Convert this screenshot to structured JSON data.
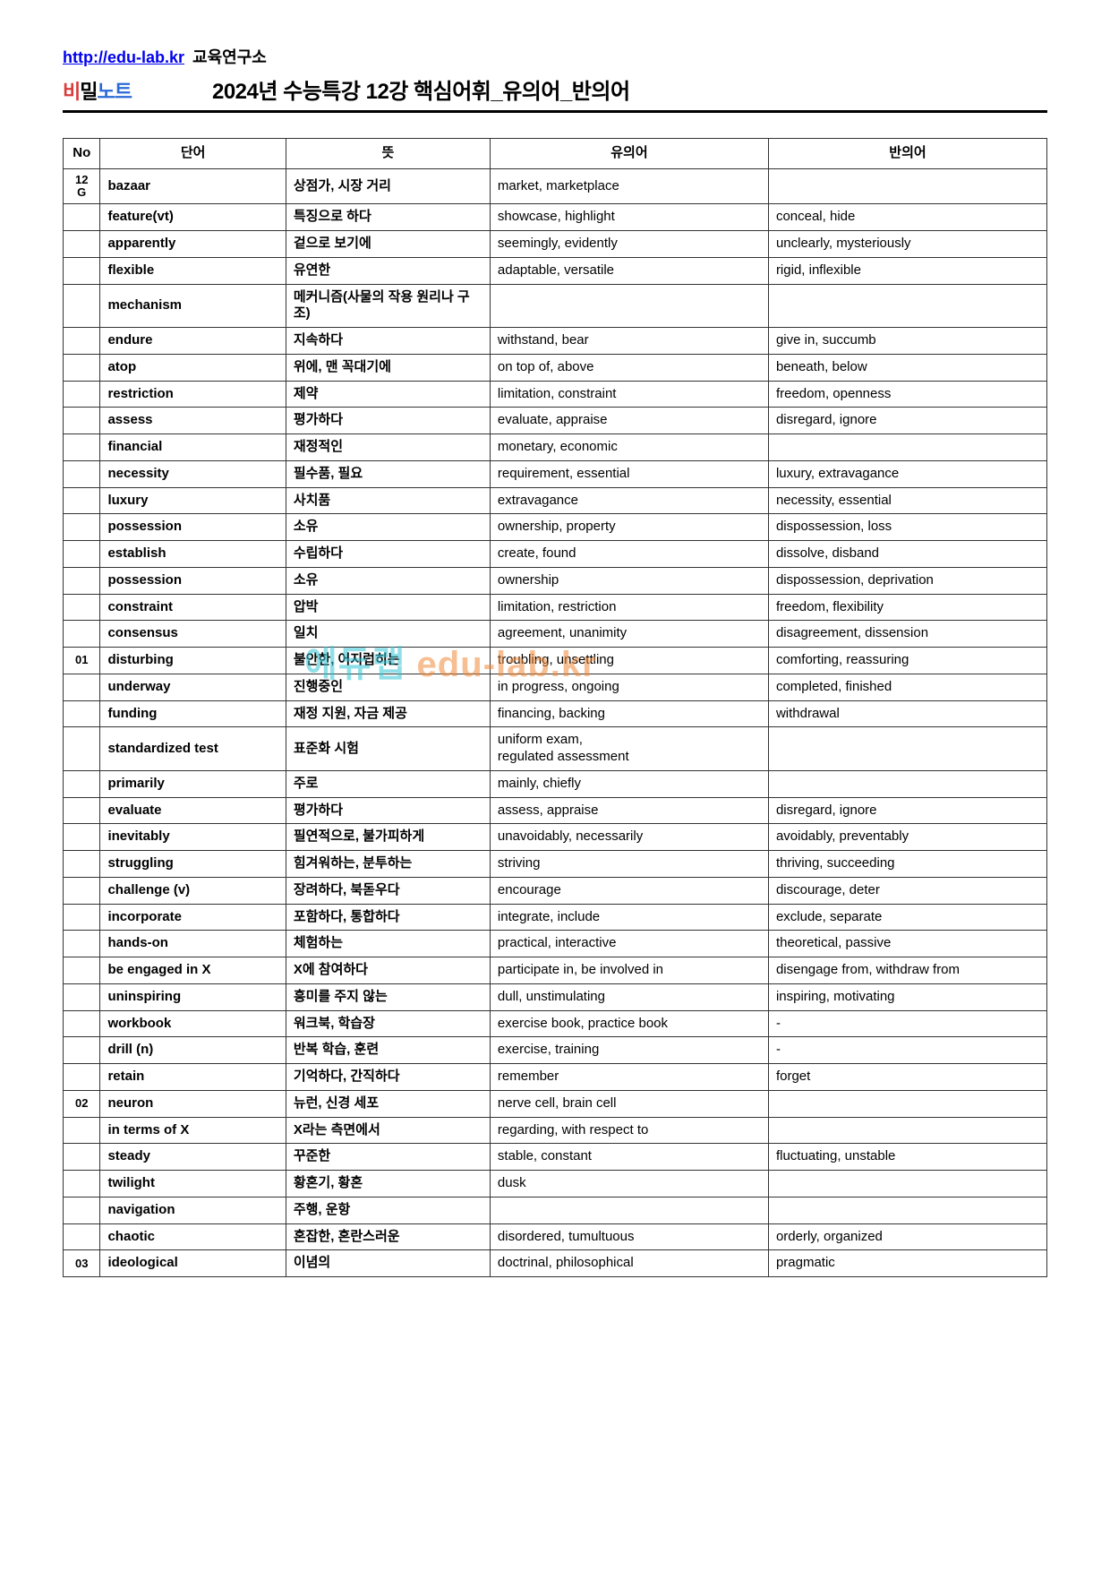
{
  "header": {
    "url": "http://edu-lab.kr",
    "org": "교육연구소",
    "logo_parts": {
      "a": "비",
      "b": "밀",
      "c": "노트"
    },
    "title": "2024년  수능특강  12강  핵심어휘_유의어_반의어"
  },
  "columns": [
    "No",
    "단어",
    "뜻",
    "유의어",
    "반의어"
  ],
  "rows": [
    {
      "no": "12\nG",
      "word": "bazaar",
      "mean": "상점가, 시장 거리",
      "syn": "market, marketplace",
      "ant": ""
    },
    {
      "no": "",
      "word": "feature(vt)",
      "mean": "특징으로 하다",
      "syn": "showcase, highlight",
      "ant": "conceal, hide"
    },
    {
      "no": "",
      "word": "apparently",
      "mean": "겉으로 보기에",
      "syn": "seemingly, evidently",
      "ant": "unclearly, mysteriously"
    },
    {
      "no": "",
      "word": "flexible",
      "mean": "유연한",
      "syn": "adaptable, versatile",
      "ant": "rigid, inflexible"
    },
    {
      "no": "",
      "word": "mechanism",
      "mean": "메커니즘(사물의 작용 원리나 구조)",
      "syn": "",
      "ant": ""
    },
    {
      "no": "",
      "word": "endure",
      "mean": "지속하다",
      "syn": "withstand, bear",
      "ant": "give in, succumb"
    },
    {
      "no": "",
      "word": "atop",
      "mean": "위에, 맨 꼭대기에",
      "syn": "on top of, above",
      "ant": "beneath, below"
    },
    {
      "no": "",
      "word": "restriction",
      "mean": "제약",
      "syn": "limitation, constraint",
      "ant": "freedom, openness"
    },
    {
      "no": "",
      "word": "assess",
      "mean": "평가하다",
      "syn": "evaluate, appraise",
      "ant": "disregard, ignore"
    },
    {
      "no": "",
      "word": "financial",
      "mean": "재정적인",
      "syn": "monetary, economic",
      "ant": ""
    },
    {
      "no": "",
      "word": "necessity",
      "mean": "필수품, 필요",
      "syn": "requirement, essential",
      "ant": "luxury, extravagance"
    },
    {
      "no": "",
      "word": "luxury",
      "mean": "사치품",
      "syn": "extravagance",
      "ant": "necessity, essential"
    },
    {
      "no": "",
      "word": "possession",
      "mean": "소유",
      "syn": "ownership, property",
      "ant": "dispossession, loss"
    },
    {
      "no": "",
      "word": "establish",
      "mean": "수립하다",
      "syn": "create, found",
      "ant": "dissolve, disband"
    },
    {
      "no": "",
      "word": "possession",
      "mean": "소유",
      "syn": "ownership",
      "ant": "dispossession, deprivation"
    },
    {
      "no": "",
      "word": "constraint",
      "mean": "압박",
      "syn": "limitation, restriction",
      "ant": "freedom, flexibility"
    },
    {
      "no": "",
      "word": "consensus",
      "mean": "일치",
      "syn": "agreement, unanimity",
      "ant": "disagreement, dissension"
    },
    {
      "no": "01",
      "word": "disturbing",
      "mean": "불안한, 어지럽히는",
      "syn": "troubling, unsettling",
      "ant": "comforting, reassuring"
    },
    {
      "no": "",
      "word": "underway",
      "mean": "진행중인",
      "syn": "in progress, ongoing",
      "ant": "completed, finished"
    },
    {
      "no": "",
      "word": "funding",
      "mean": "재정 지원, 자금 제공",
      "syn": "financing, backing",
      "ant": "withdrawal"
    },
    {
      "no": "",
      "word": "standardized test",
      "mean": "표준화 시험",
      "syn": "uniform exam,\nregulated assessment",
      "ant": ""
    },
    {
      "no": "",
      "word": "primarily",
      "mean": "주로",
      "syn": "mainly, chiefly",
      "ant": ""
    },
    {
      "no": "",
      "word": "evaluate",
      "mean": "평가하다",
      "syn": "assess, appraise",
      "ant": "disregard, ignore"
    },
    {
      "no": "",
      "word": "inevitably",
      "mean": "필연적으로, 불가피하게",
      "syn": "unavoidably, necessarily",
      "ant": "avoidably, preventably"
    },
    {
      "no": "",
      "word": "struggling",
      "mean": "힘겨워하는, 분투하는",
      "syn": "striving",
      "ant": "thriving, succeeding"
    },
    {
      "no": "",
      "word": "challenge (v)",
      "mean": "장려하다, 북돋우다",
      "syn": "encourage",
      "ant": "discourage, deter"
    },
    {
      "no": "",
      "word": "incorporate",
      "mean": "포함하다, 통합하다",
      "syn": "integrate, include",
      "ant": "exclude, separate"
    },
    {
      "no": "",
      "word": "hands-on",
      "mean": "체험하는",
      "syn": "practical, interactive",
      "ant": "theoretical, passive"
    },
    {
      "no": "",
      "word": "be engaged in X",
      "mean": "X에 참여하다",
      "syn": "participate in, be involved in",
      "ant": "disengage from, withdraw from"
    },
    {
      "no": "",
      "word": "uninspiring",
      "mean": "흥미를 주지 않는",
      "syn": "dull, unstimulating",
      "ant": "inspiring, motivating"
    },
    {
      "no": "",
      "word": "workbook",
      "mean": "워크북, 학습장",
      "syn": "exercise book, practice book",
      "ant": "-"
    },
    {
      "no": "",
      "word": "drill (n)",
      "mean": "반복 학습, 훈련",
      "syn": "exercise, training",
      "ant": "-"
    },
    {
      "no": "",
      "word": "retain",
      "mean": "기억하다, 간직하다",
      "syn": "remember",
      "ant": "forget"
    },
    {
      "no": "02",
      "word": "neuron",
      "mean": "뉴런, 신경 세포",
      "syn": "nerve cell, brain cell",
      "ant": ""
    },
    {
      "no": "",
      "word": "in terms of X",
      "mean": "X라는 측면에서",
      "syn": "regarding, with respect to",
      "ant": ""
    },
    {
      "no": "",
      "word": "steady",
      "mean": "꾸준한",
      "syn": "stable, constant",
      "ant": "fluctuating, unstable"
    },
    {
      "no": "",
      "word": "twilight",
      "mean": "황혼기, 황혼",
      "syn": "dusk",
      "ant": ""
    },
    {
      "no": "",
      "word": "navigation",
      "mean": "주행, 운항",
      "syn": "",
      "ant": ""
    },
    {
      "no": "",
      "word": "chaotic",
      "mean": "혼잡한, 혼란스러운",
      "syn": "disordered, tumultuous",
      "ant": "orderly, organized"
    },
    {
      "no": "03",
      "word": "ideological",
      "mean": "이념의",
      "syn": "doctrinal, philosophical",
      "ant": "pragmatic"
    }
  ],
  "watermark": {
    "text_a": "에듀랩",
    "text_b": "edu-lab.kr",
    "color_a": "#35c5d6",
    "color_b": "#f08a3a"
  }
}
